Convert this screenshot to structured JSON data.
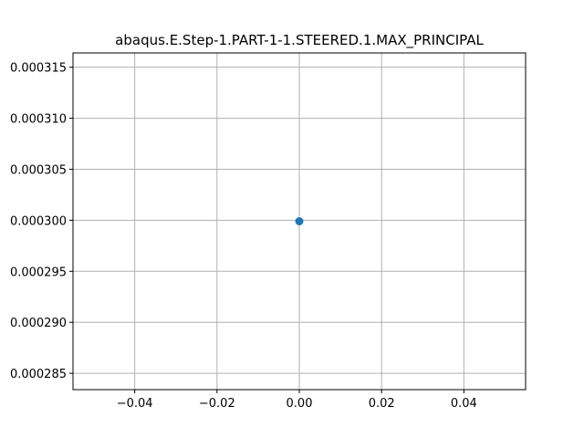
{
  "chart_data": {
    "type": "scatter",
    "title": "abaqus.E.Step-1.PART-1-1.STEERED.1.MAX_PRINCIPAL",
    "xlabel": "",
    "ylabel": "",
    "xlim": [
      -0.055,
      0.055
    ],
    "ylim": [
      0.0002834,
      0.0003164
    ],
    "grid": true,
    "x_ticks": [
      -0.04,
      -0.02,
      0.0,
      0.02,
      0.04
    ],
    "x_tick_labels": [
      "−0.04",
      "−0.02",
      "0.00",
      "0.02",
      "0.04"
    ],
    "y_ticks": [
      0.000285,
      0.00029,
      0.000295,
      0.0003,
      0.000305,
      0.00031,
      0.000315
    ],
    "y_tick_labels": [
      "0.000285",
      "0.000290",
      "0.000295",
      "0.000300",
      "0.000305",
      "0.000310",
      "0.000315"
    ],
    "series": [
      {
        "x": [
          0.0
        ],
        "y": [
          0.0002999
        ]
      }
    ],
    "colors": {
      "point": "#1f77b4",
      "grid": "#b0b0b0",
      "axes": "#000000"
    }
  }
}
